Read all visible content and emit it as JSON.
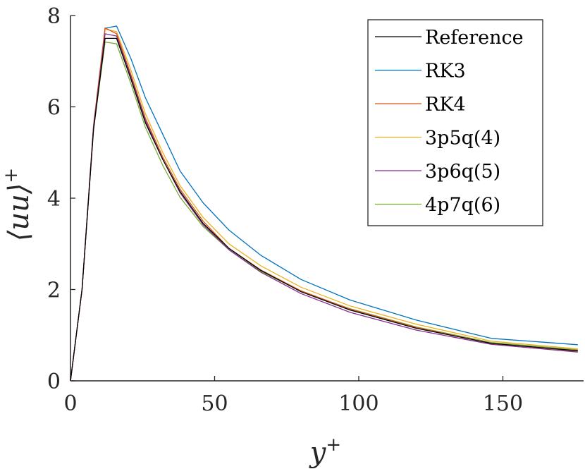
{
  "chart_data": {
    "type": "line",
    "title": "",
    "xlabel": "y+",
    "ylabel": "⟨uu⟩+",
    "xlabel_main": "y",
    "xlabel_sup": "+",
    "ylabel_main": "⟨uu⟩",
    "ylabel_sup": "+",
    "xlim": [
      0,
      178
    ],
    "ylim": [
      0,
      8
    ],
    "xticks": [
      0,
      50,
      100,
      150
    ],
    "yticks": [
      0,
      2,
      4,
      6,
      8
    ],
    "grid": false,
    "legend_position": "top-right",
    "x": [
      0,
      4,
      8,
      12,
      16,
      21,
      26,
      32,
      38,
      46,
      55,
      66,
      80,
      97,
      120,
      146,
      176
    ],
    "series": [
      {
        "name": "Reference",
        "color": "#000000",
        "values": [
          0,
          2.0,
          5.5,
          7.5,
          7.5,
          6.6,
          5.65,
          4.85,
          4.15,
          3.45,
          2.9,
          2.42,
          1.95,
          1.55,
          1.15,
          0.82,
          0.66
        ]
      },
      {
        "name": "RK3",
        "color": "#0072BD",
        "values": [
          0,
          2.0,
          5.55,
          7.72,
          7.77,
          7.05,
          6.2,
          5.4,
          4.6,
          3.9,
          3.3,
          2.75,
          2.22,
          1.77,
          1.33,
          0.93,
          0.79
        ]
      },
      {
        "name": "RK4",
        "color": "#D95319",
        "values": [
          0,
          2.0,
          5.6,
          7.73,
          7.6,
          6.7,
          5.75,
          4.9,
          4.2,
          3.5,
          2.9,
          2.43,
          1.97,
          1.57,
          1.17,
          0.82,
          0.65
        ]
      },
      {
        "name": "3p5q(4)",
        "color": "#EDB120",
        "values": [
          0,
          2.0,
          5.55,
          7.7,
          7.65,
          6.8,
          5.85,
          5.0,
          4.28,
          3.58,
          3.0,
          2.52,
          2.05,
          1.64,
          1.24,
          0.87,
          0.7
        ]
      },
      {
        "name": "3p6q(5)",
        "color": "#7E2F8E",
        "values": [
          0,
          2.0,
          5.55,
          7.6,
          7.55,
          6.65,
          5.7,
          4.85,
          4.12,
          3.42,
          2.87,
          2.38,
          1.91,
          1.5,
          1.11,
          0.8,
          0.63
        ]
      },
      {
        "name": "4p7q(6)",
        "color": "#77AC30",
        "values": [
          0,
          2.0,
          5.5,
          7.42,
          7.38,
          6.5,
          5.55,
          4.72,
          4.02,
          3.38,
          2.87,
          2.4,
          1.96,
          1.58,
          1.18,
          0.84,
          0.68
        ]
      }
    ]
  }
}
